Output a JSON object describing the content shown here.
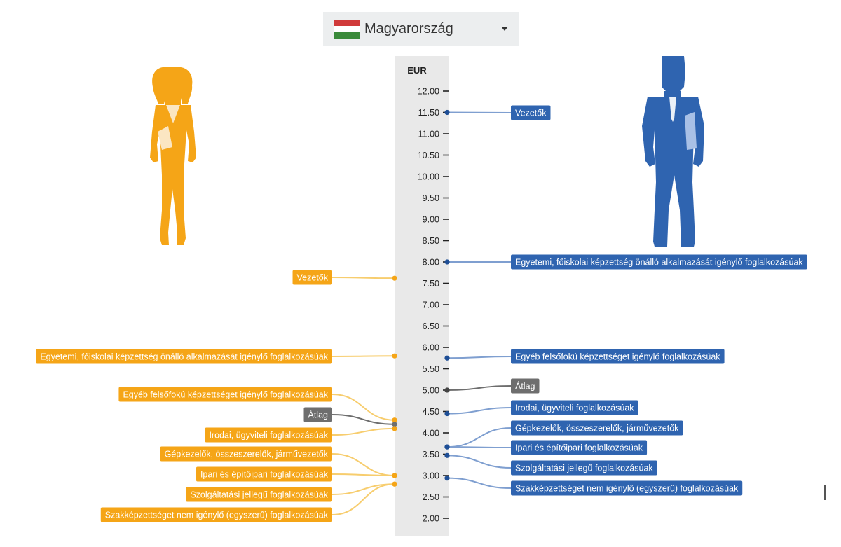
{
  "country_selector": {
    "selected": "Magyarország",
    "flag_colors": [
      "#d03a3a",
      "#ffffff",
      "#3a8a3a"
    ]
  },
  "colors": {
    "women": "#f5a517",
    "women_line": "#f7cd6e",
    "men": "#2f64b0",
    "men_line": "#7f9fd0",
    "average": "#6e6e6e",
    "band": "#e9e9e9"
  },
  "chart_data": {
    "type": "scatter",
    "title": "",
    "ylabel": "EUR",
    "ylim": [
      2.0,
      12.0
    ],
    "tick_step": 0.5,
    "tick_labels": [
      "12.00",
      "11.50",
      "11.00",
      "10.50",
      "10.00",
      "9.50",
      "9.00",
      "8.50",
      "8.00",
      "7.50",
      "7.00",
      "6.50",
      "6.00",
      "5.50",
      "5.00",
      "4.50",
      "4.00",
      "3.50",
      "3.00",
      "2.50",
      "2.00"
    ],
    "categories": [
      "Vezetők",
      "Egyetemi, főiskolai képzettség önálló alkalmazását igénylő foglalkozásúak",
      "Egyéb felsőfokú képzettséget igénylő foglalkozásúak",
      "Átlag",
      "Irodai, ügyviteli foglalkozásúak",
      "Gépkezelők, összeszerelők, járművezetők",
      "Ipari és építőipari foglalkozásúak",
      "Szolgáltatási jellegű foglalkozásúak",
      "Szakképzettséget nem igénylő (egyszerű) foglalkozásúak"
    ],
    "series": [
      {
        "name": "Nők",
        "values": [
          7.62,
          5.8,
          4.3,
          4.2,
          4.1,
          3.0,
          3.0,
          2.8,
          2.8
        ]
      },
      {
        "name": "Férfiak",
        "values": [
          11.5,
          8.0,
          5.75,
          5.0,
          4.45,
          3.67,
          3.67,
          3.47,
          2.94
        ]
      }
    ]
  }
}
